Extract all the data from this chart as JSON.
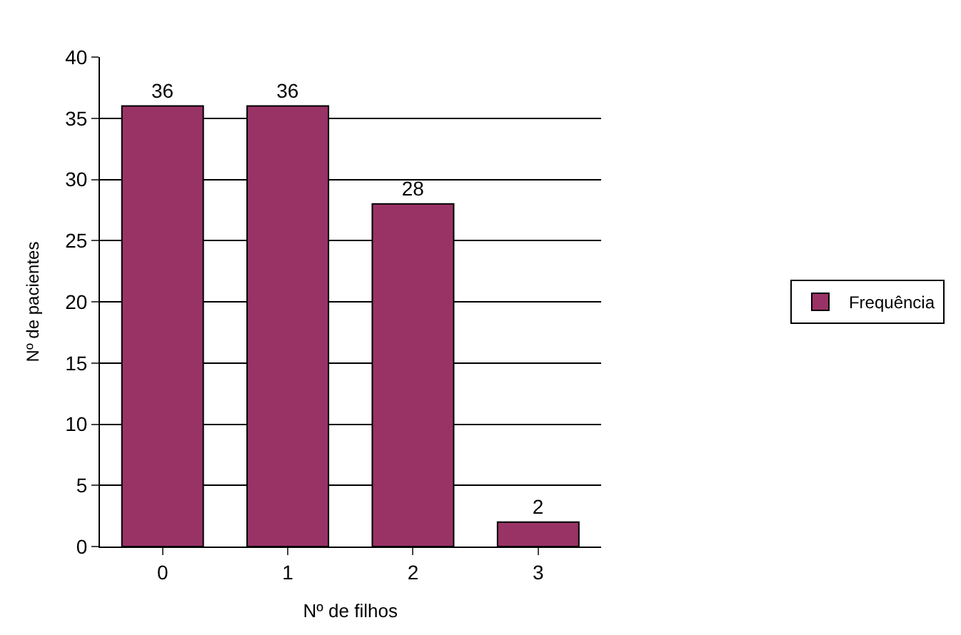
{
  "chart_data": {
    "type": "bar",
    "categories": [
      "0",
      "1",
      "2",
      "3"
    ],
    "series": [
      {
        "name": "Frequência",
        "color": "#993366",
        "values": [
          36,
          36,
          28,
          2
        ]
      }
    ],
    "xlabel": "Nº de filhos",
    "ylabel": "Nº de pacientes",
    "ylim": [
      0,
      40
    ],
    "yticks": [
      0,
      5,
      10,
      15,
      20,
      25,
      30,
      35,
      40
    ],
    "grid": "y",
    "legend": "right",
    "data_labels": true
  }
}
